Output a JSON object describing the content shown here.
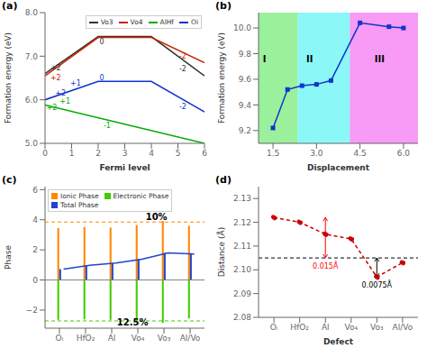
{
  "chart_data": [
    {
      "type": "line",
      "title": "(a)",
      "xlabel": "Fermi level",
      "ylabel": "Formation energy  (eV)",
      "xlim": [
        0,
        6
      ],
      "ylim": [
        5.0,
        8.0
      ],
      "xticks": [
        0,
        1,
        2,
        3,
        4,
        5,
        6
      ],
      "yticks": [
        {
          "value": 5.0,
          "label": "5.0"
        },
        {
          "value": 6.0,
          "label": "6.0"
        },
        {
          "value": 7.0,
          "label": "7.0"
        },
        {
          "value": 8.0,
          "label": "8.0"
        }
      ],
      "grid": false,
      "legend": "upper right",
      "series": [
        {
          "name": "Vo3",
          "color": "#333333",
          "x": [
            0,
            2,
            4,
            6
          ],
          "values": [
            6.6,
            7.45,
            7.45,
            6.55
          ]
        },
        {
          "name": "Vo4",
          "color": "#cc2200",
          "x": [
            0,
            2,
            4,
            6
          ],
          "values": [
            6.55,
            7.43,
            7.43,
            6.85
          ]
        },
        {
          "name": "AlHf",
          "color": "#00aa00",
          "x": [
            0,
            6
          ],
          "values": [
            5.88,
            5.0
          ]
        },
        {
          "name": "Oi",
          "color": "#1133cc",
          "x": [
            0,
            2,
            4,
            6
          ],
          "values": [
            6.0,
            6.42,
            6.42,
            5.72
          ]
        }
      ],
      "annotations": [
        {
          "text": "+2",
          "x": 0.2,
          "y": 6.68,
          "color": "#333333"
        },
        {
          "text": "0",
          "x": 2.05,
          "y": 7.28,
          "color": "#333333"
        },
        {
          "text": "-2",
          "x": 5.05,
          "y": 6.65,
          "color": "#333333"
        },
        {
          "text": "+2",
          "x": 0.2,
          "y": 6.44,
          "color": "#cc2200"
        },
        {
          "text": "-2",
          "x": 5.05,
          "y": 6.95,
          "color": "#cc2200"
        },
        {
          "text": "+2",
          "x": 0.05,
          "y": 5.76,
          "color": "#00aa00"
        },
        {
          "text": "+1",
          "x": 0.55,
          "y": 5.92,
          "color": "#00aa00"
        },
        {
          "text": "-1",
          "x": 2.2,
          "y": 5.35,
          "color": "#00aa00"
        },
        {
          "text": "+2",
          "x": 0.38,
          "y": 6.1,
          "color": "#1133cc"
        },
        {
          "text": "+1",
          "x": 0.95,
          "y": 6.32,
          "color": "#1133cc"
        },
        {
          "text": "0",
          "x": 2.05,
          "y": 6.44,
          "color": "#1133cc"
        },
        {
          "text": "-2",
          "x": 5.05,
          "y": 5.78,
          "color": "#1133cc"
        }
      ]
    },
    {
      "type": "line",
      "title": "(b)",
      "xlabel": "Displacement",
      "ylabel": "Formation energy (eV)",
      "xlim": [
        1.0,
        6.5
      ],
      "ylim": [
        9.1,
        10.12
      ],
      "xticks": [
        1.5,
        {
          "value": 3.0,
          "label": "3.0"
        },
        4.5,
        {
          "value": 6.0,
          "label": "6.0"
        }
      ],
      "yticks": [
        9.2,
        9.4,
        9.6,
        9.8,
        {
          "value": 10.0,
          "label": "10.0"
        }
      ],
      "grid": false,
      "x": [
        1.5,
        2.0,
        2.5,
        3.0,
        3.5,
        4.5,
        5.5,
        6.0
      ],
      "series": [
        {
          "color": "#1133cc",
          "marker": "square",
          "values": [
            9.22,
            9.52,
            9.55,
            9.56,
            9.59,
            10.04,
            10.01,
            10.0
          ]
        }
      ],
      "regions": [
        {
          "x": [
            1.0,
            2.35
          ],
          "color": "#22dd22"
        },
        {
          "x": [
            2.35,
            4.15
          ],
          "color": "#00eeee"
        },
        {
          "x": [
            4.15,
            6.5
          ],
          "color": "#ee22ee"
        }
      ],
      "annotations": [
        {
          "text": "I",
          "x": 1.15,
          "y": 9.73
        },
        {
          "text": "II",
          "x": 2.65,
          "y": 9.73
        },
        {
          "text": "III",
          "x": 5.0,
          "y": 9.73
        }
      ]
    },
    {
      "type": "bar",
      "title": "(c)",
      "ylabel": "Phase",
      "categories": [
        "Oᵢ",
        "HfO₂",
        "Al",
        "Vo₄",
        "Vo₃",
        "Al/Vo"
      ],
      "ylim": [
        -3.2,
        6.2
      ],
      "yticks": [
        {
          "value": -2,
          "label": "−2"
        },
        0,
        2,
        4,
        6
      ],
      "grid": false,
      "legend": "upper left",
      "stacked": true,
      "series": [
        {
          "name": "Ionic Phase",
          "color": "#ff8800",
          "type": "bar",
          "values": [
            3.45,
            3.52,
            3.48,
            3.65,
            3.92,
            3.6
          ]
        },
        {
          "name": "Electronic Phase",
          "color": "#44cc00",
          "type": "bar",
          "values": [
            -2.65,
            -2.62,
            -2.65,
            -2.72,
            -2.85,
            -2.55
          ]
        },
        {
          "name": "Total Phase",
          "color": "#2244cc",
          "type": "barline",
          "values": [
            0.72,
            0.98,
            1.12,
            1.38,
            1.8,
            1.72
          ]
        }
      ],
      "hlines": [
        {
          "y": 3.85,
          "color": "#ff8800",
          "line_style": "dashed"
        },
        {
          "y": -2.72,
          "color": "#44cc00",
          "line_style": "dashed"
        },
        {
          "y": 0,
          "color": "#808080",
          "line_style": "solid"
        }
      ],
      "annotations": [
        {
          "text": "10%",
          "x": 3.3,
          "y": 4.0
        },
        {
          "text": "12.5%",
          "x": 2.2,
          "y": -3.05
        }
      ]
    },
    {
      "type": "line",
      "title": "(d)",
      "xlabel": "Defect",
      "ylabel": "Distance (Å)",
      "categories": [
        "Oᵢ",
        "HfO₂",
        "Al",
        "Vo₄",
        "Vo₃",
        "Al/Vo"
      ],
      "ylim": [
        2.08,
        2.135
      ],
      "yticks": [
        2.08,
        2.09,
        {
          "value": 2.1,
          "label": "2.10"
        },
        2.11,
        2.12,
        2.13
      ],
      "grid": false,
      "series": [
        {
          "color": "#cc0000",
          "line_style": "dashed",
          "marker": "circle",
          "values": [
            2.122,
            2.12,
            2.115,
            2.113,
            2.097,
            2.103
          ]
        }
      ],
      "hlines": [
        {
          "y": 2.105,
          "color": "#000000",
          "line_style": "dashed"
        }
      ],
      "arrows": [
        {
          "x": 2,
          "from": 2.122,
          "to": 2.105,
          "color": "#ff0000",
          "text": "0.015Å"
        },
        {
          "x": 4,
          "from": 2.105,
          "to": 2.097,
          "color": "#000000",
          "text": "0.0075Å"
        }
      ]
    }
  ]
}
